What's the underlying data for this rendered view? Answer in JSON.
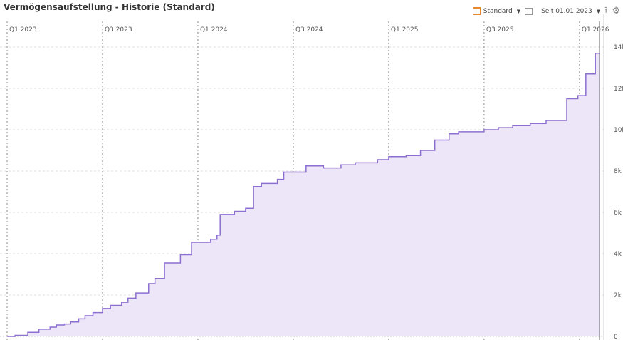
{
  "header": {
    "title": "Vermögensaufstellung - Historie (Standard)"
  },
  "toolbar": {
    "view_label": "Standard",
    "period_label": "Seit 01.01.2023",
    "icons": [
      "calendar-icon",
      "caret-down-icon",
      "calendar-range-icon",
      "export-icon",
      "gear-icon"
    ]
  },
  "chart_data": {
    "type": "area",
    "step": true,
    "title": "Vermögensaufstellung - Historie (Standard)",
    "x_unit": "months since 01.01.2023",
    "x_ticks": [
      {
        "label": "Q1 2023",
        "x": 0
      },
      {
        "label": "Q3 2023",
        "x": 6
      },
      {
        "label": "Q1 2024",
        "x": 12
      },
      {
        "label": "Q3 2024",
        "x": 18
      },
      {
        "label": "Q1 2025",
        "x": 24
      },
      {
        "label": "Q3 2025",
        "x": 30
      },
      {
        "label": "Q1 2026",
        "x": 36
      }
    ],
    "y_ticks": [
      {
        "label": "0",
        "y": 0
      },
      {
        "label": "2k",
        "y": 2000
      },
      {
        "label": "4k",
        "y": 4000
      },
      {
        "label": "6k",
        "y": 6000
      },
      {
        "label": "8k",
        "y": 8000
      },
      {
        "label": "10k",
        "y": 10000
      },
      {
        "label": "12k",
        "y": 12000
      },
      {
        "label": "14k",
        "y": 14000
      }
    ],
    "ylim": [
      0,
      14000
    ],
    "xlim": [
      0,
      37.3
    ],
    "color": "#8c6fd1",
    "fill": "#ede6f9",
    "x": [
      0,
      0.5,
      1.3,
      2.0,
      2.7,
      3.1,
      3.6,
      4.0,
      4.5,
      4.9,
      5.4,
      6.0,
      6.5,
      7.2,
      7.6,
      8.1,
      8.9,
      9.3,
      9.9,
      10.9,
      11.6,
      12.8,
      13.2,
      13.4,
      14.3,
      15.0,
      15.5,
      16.0,
      17.0,
      17.4,
      18.8,
      19.9,
      21.0,
      21.9,
      23.3,
      24.0,
      25.1,
      26.0,
      26.9,
      27.8,
      28.4,
      30.0,
      30.9,
      31.8,
      32.9,
      33.9,
      35.2,
      35.9,
      36.4,
      37.0,
      37.3
    ],
    "values": [
      0,
      50,
      200,
      350,
      450,
      550,
      600,
      700,
      850,
      1000,
      1150,
      1350,
      1500,
      1650,
      1850,
      2100,
      2550,
      2800,
      3550,
      3950,
      4550,
      4700,
      4900,
      5900,
      6050,
      6200,
      7250,
      7400,
      7600,
      7950,
      8250,
      8150,
      8300,
      8400,
      8550,
      8700,
      8750,
      9000,
      9500,
      9800,
      9900,
      10000,
      10100,
      10200,
      10300,
      10450,
      11500,
      11650,
      12700,
      13700,
      13700
    ]
  }
}
